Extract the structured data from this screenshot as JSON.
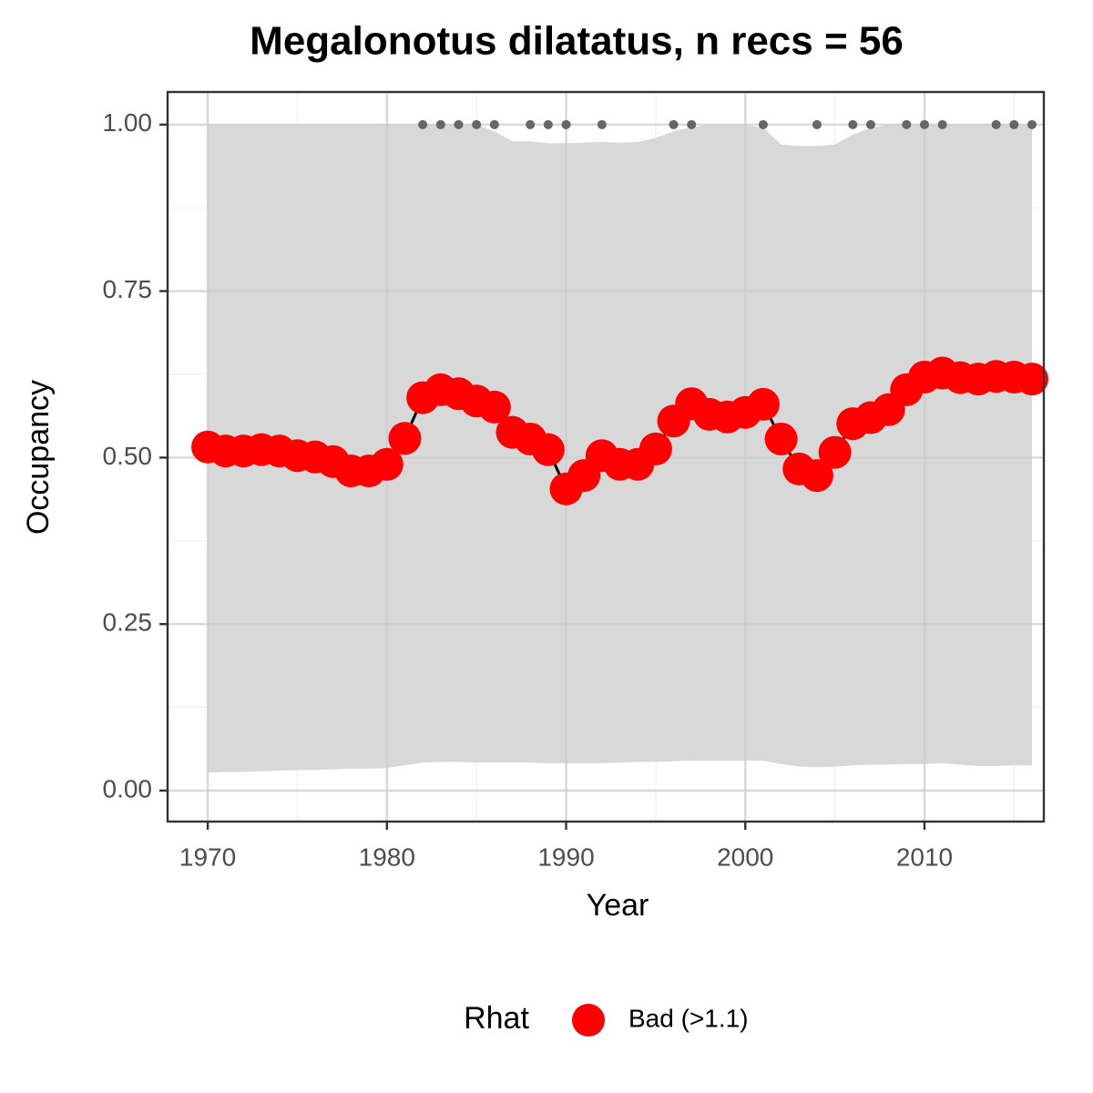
{
  "chart_data": {
    "type": "line",
    "title": "Megalonotus dilatatus, n recs = 56",
    "x_label": "Year",
    "y_label": "Occupancy",
    "x": [
      1970,
      1971,
      1972,
      1973,
      1974,
      1975,
      1976,
      1977,
      1978,
      1979,
      1980,
      1981,
      1982,
      1983,
      1984,
      1985,
      1986,
      1987,
      1988,
      1989,
      1990,
      1991,
      1992,
      1993,
      1994,
      1995,
      1996,
      1997,
      1998,
      1999,
      2000,
      2001,
      2002,
      2003,
      2004,
      2005,
      2006,
      2007,
      2008,
      2009,
      2010,
      2011,
      2012,
      2013,
      2014,
      2015,
      2016
    ],
    "series": [
      {
        "name": "Bad (>1.1)",
        "color": "#ff0000",
        "values": [
          0.516,
          0.51,
          0.51,
          0.512,
          0.51,
          0.503,
          0.501,
          0.494,
          0.48,
          0.48,
          0.49,
          0.529,
          0.59,
          0.602,
          0.596,
          0.585,
          0.576,
          0.538,
          0.528,
          0.512,
          0.453,
          0.473,
          0.503,
          0.49,
          0.49,
          0.513,
          0.555,
          0.581,
          0.565,
          0.561,
          0.568,
          0.58,
          0.528,
          0.483,
          0.473,
          0.508,
          0.551,
          0.56,
          0.572,
          0.602,
          0.621,
          0.627,
          0.62,
          0.618,
          0.622,
          0.621,
          0.618
        ]
      }
    ],
    "band": {
      "color": "#d6d6d6",
      "upper": [
        1,
        1,
        1,
        1,
        1,
        1,
        1,
        1,
        1,
        1,
        1,
        1,
        1,
        1,
        1,
        1,
        0.99,
        0.975,
        0.975,
        0.972,
        0.972,
        0.973,
        0.974,
        0.973,
        0.974,
        0.98,
        0.99,
        0.996,
        1,
        1,
        1,
        0.995,
        0.97,
        0.968,
        0.968,
        0.97,
        0.985,
        0.995,
        1,
        1,
        1,
        1,
        1,
        1,
        1,
        1,
        1
      ],
      "lower": [
        0.027,
        0.028,
        0.028,
        0.029,
        0.03,
        0.031,
        0.031,
        0.032,
        0.033,
        0.033,
        0.034,
        0.038,
        0.042,
        0.043,
        0.043,
        0.042,
        0.042,
        0.042,
        0.042,
        0.041,
        0.041,
        0.041,
        0.041,
        0.042,
        0.043,
        0.043,
        0.044,
        0.045,
        0.045,
        0.045,
        0.045,
        0.045,
        0.04,
        0.036,
        0.035,
        0.036,
        0.038,
        0.039,
        0.039,
        0.04,
        0.04,
        0.041,
        0.039,
        0.037,
        0.037,
        0.038,
        0.038
      ]
    },
    "points": {
      "color": "#666666",
      "x": [
        1982,
        1983,
        1984,
        1985,
        1986,
        1988,
        1989,
        1990,
        1992,
        1996,
        1997,
        2001,
        2004,
        2006,
        2007,
        2009,
        2010,
        2011,
        2014,
        2015,
        2016
      ],
      "values": [
        1,
        1,
        1,
        1,
        1,
        1,
        1,
        1,
        1,
        1,
        1,
        1,
        1,
        1,
        1,
        1,
        1,
        1,
        1,
        1,
        1
      ]
    },
    "xlim": [
      1967.76,
      2016.66
    ],
    "ylim": [
      -0.0465,
      1.049
    ],
    "xticks": [
      1970,
      1980,
      1990,
      2000,
      2010
    ],
    "yticks": [
      {
        "value": 0,
        "label": "0.00"
      },
      {
        "value": 0.25,
        "label": "0.25"
      },
      {
        "value": 0.5,
        "label": "0.50"
      },
      {
        "value": 0.75,
        "label": "0.75"
      },
      {
        "value": 1,
        "label": "1.00"
      }
    ],
    "grid": true,
    "legend": {
      "title": "Rhat",
      "position": "bottom"
    }
  }
}
